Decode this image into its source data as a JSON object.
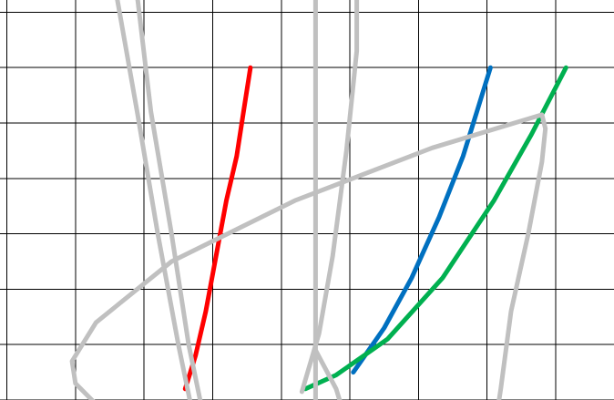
{
  "chart_data": {
    "type": "line",
    "title": "",
    "xlabel": "",
    "ylabel": "",
    "grid": true,
    "x_gridlines": [
      0,
      1,
      2,
      3,
      4,
      5,
      6,
      7,
      8
    ],
    "y_gridlines": [
      0,
      1,
      2,
      3,
      4,
      5,
      6,
      7
    ],
    "xlim": [
      -0.1,
      8.85
    ],
    "ylim": [
      0,
      7.22
    ],
    "series": [
      {
        "color": "#ff0000",
        "points": [
          [
            3.55,
            6
          ],
          [
            3.45,
            5.2
          ],
          [
            3.35,
            4.4
          ],
          [
            3.2,
            3.6
          ],
          [
            3.05,
            2.6
          ],
          [
            2.9,
            1.6
          ],
          [
            2.75,
            0.8
          ],
          [
            2.6,
            0.2
          ]
        ]
      },
      {
        "color": "#0070c0",
        "points": [
          [
            7.05,
            6
          ],
          [
            6.85,
            5.2
          ],
          [
            6.65,
            4.4
          ],
          [
            6.3,
            3.3
          ],
          [
            5.9,
            2.2
          ],
          [
            5.5,
            1.3
          ],
          [
            5.05,
            0.5
          ]
        ]
      },
      {
        "color": "#00b050",
        "points": [
          [
            8.15,
            6
          ],
          [
            7.65,
            4.8
          ],
          [
            7.1,
            3.6
          ],
          [
            6.35,
            2.2
          ],
          [
            5.55,
            1.1
          ],
          [
            4.8,
            0.45
          ],
          [
            4.35,
            0.2
          ]
        ]
      },
      {
        "color": "#c0c0c0",
        "points": [
          [
            1.6,
            7.3
          ],
          [
            1.9,
            5.2
          ],
          [
            2.2,
            3.0
          ],
          [
            2.5,
            1.0
          ],
          [
            2.7,
            -0.2
          ]
        ]
      },
      {
        "color": "#c0c0c0",
        "points": [
          [
            1.9,
            7.3
          ],
          [
            2.1,
            5.2
          ],
          [
            2.4,
            3.0
          ],
          [
            2.65,
            1.0
          ],
          [
            2.85,
            -0.2
          ]
        ]
      },
      {
        "color": "#c0c0c0",
        "points": [
          [
            4.9,
            -0.2
          ],
          [
            4.8,
            0.2
          ],
          [
            4.5,
            0.9
          ]
        ]
      },
      {
        "color": "#c0c0c0",
        "points": [
          [
            4.5,
            7.3
          ],
          [
            4.5,
            -0.2
          ]
        ]
      },
      {
        "color": "#c0c0c0",
        "points": [
          [
            5.1,
            7.3
          ],
          [
            5.1,
            6.3
          ],
          [
            4.95,
            4.5
          ],
          [
            4.75,
            2.6
          ],
          [
            4.55,
            1.2
          ],
          [
            4.3,
            0.15
          ]
        ]
      },
      {
        "color": "#c0c0c0",
        "points": [
          [
            1.4,
            -0.2
          ],
          [
            1.0,
            0.3
          ],
          [
            0.95,
            0.7
          ],
          [
            1.3,
            1.4
          ],
          [
            2.4,
            2.5
          ],
          [
            4.2,
            3.6
          ],
          [
            6.2,
            4.55
          ],
          [
            7.8,
            5.15
          ],
          [
            7.85,
            4.9
          ],
          [
            7.8,
            4.3
          ],
          [
            7.6,
            3.0
          ],
          [
            7.35,
            1.6
          ],
          [
            7.2,
            0.2
          ],
          [
            7.15,
            -0.2
          ]
        ]
      }
    ]
  }
}
